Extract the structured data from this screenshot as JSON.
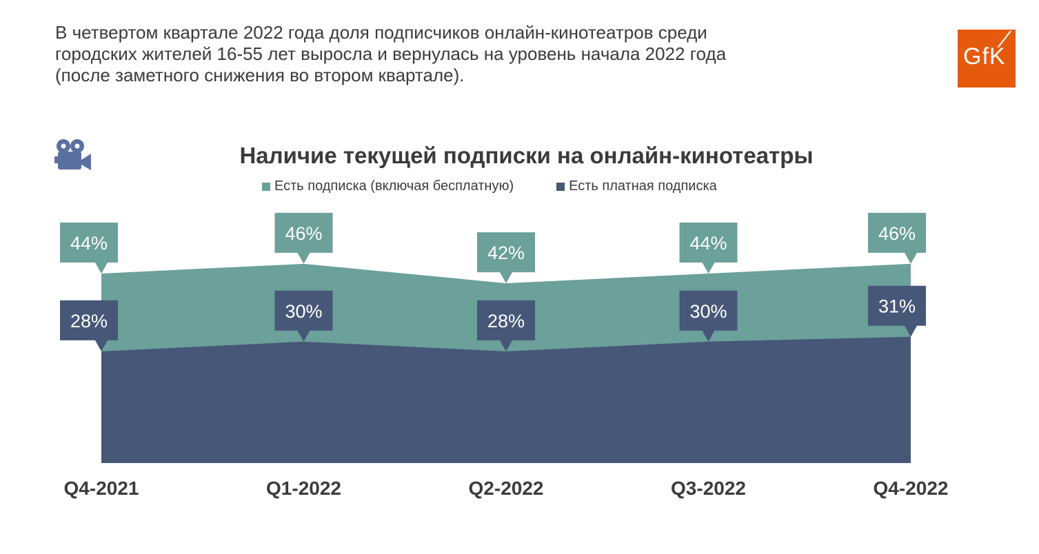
{
  "headline": {
    "lines": [
      "В четвертом квартале 2022 года доля подписчиков онлайн-кинотеатров среди",
      "городских жителей 16-55 лет выросла и вернулась на уровень начала 2022 года",
      "(после заметного снижения во втором квартале)."
    ]
  },
  "logo": {
    "text": "GfK",
    "color": "#e55a0d"
  },
  "icon": {
    "name": "movie-camera-icon",
    "color": "#5b6fa0"
  },
  "chart_data": {
    "type": "area",
    "title": "Наличие текущей подписки на онлайн-кинотеатры",
    "categories": [
      "Q4-2021",
      "Q1-2022",
      "Q2-2022",
      "Q3-2022",
      "Q4-2022"
    ],
    "series": [
      {
        "name": "Есть подписка (включая бесплатную)",
        "color": "#6ba09b",
        "values": [
          44,
          46,
          42,
          44,
          46
        ],
        "labels": [
          "44%",
          "46%",
          "42%",
          "44%",
          "46%"
        ]
      },
      {
        "name": "Есть платная подписка",
        "color": "#475778",
        "values": [
          28,
          30,
          28,
          30,
          31
        ],
        "labels": [
          "28%",
          "30%",
          "28%",
          "30%",
          "31%"
        ]
      }
    ],
    "legend_position": "top",
    "grid": false,
    "xlabel": "",
    "ylabel": ""
  }
}
